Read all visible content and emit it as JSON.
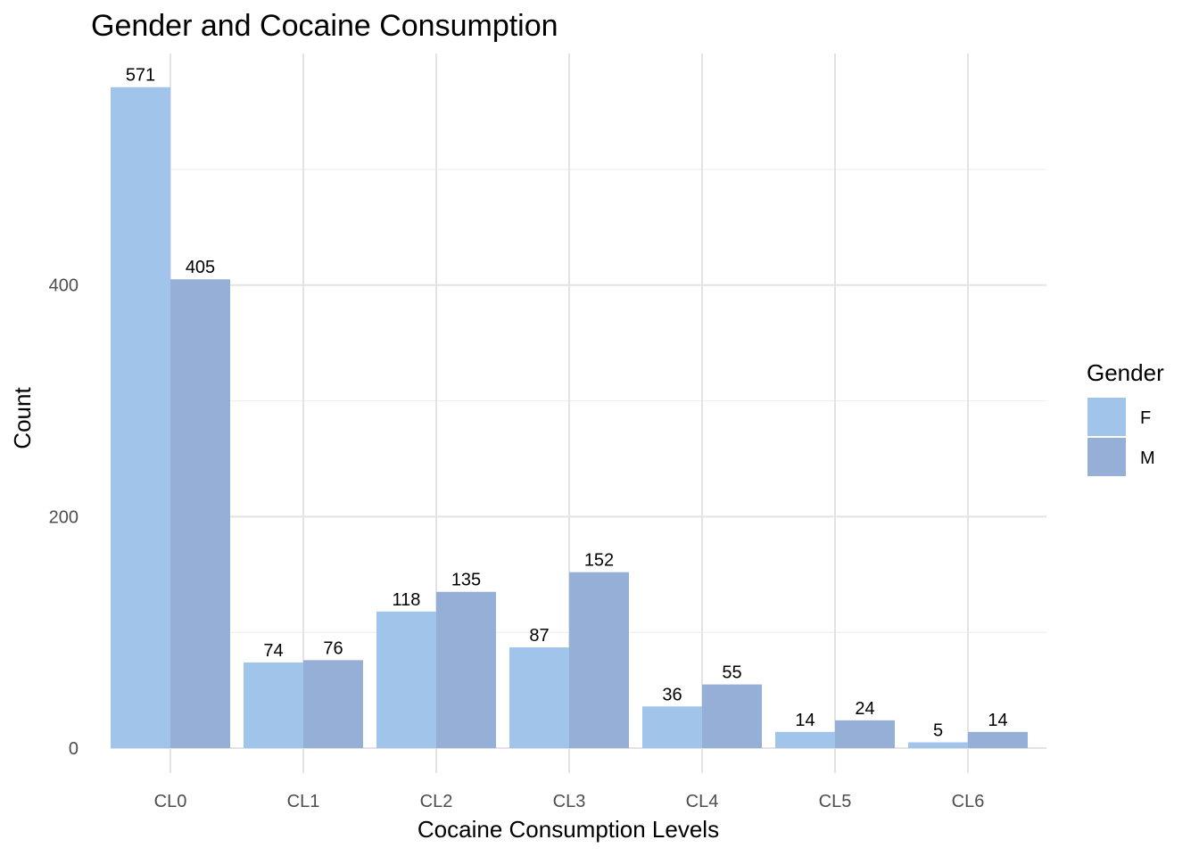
{
  "chart_data": {
    "type": "bar",
    "title": "Gender and Cocaine Consumption",
    "xlabel": "Cocaine Consumption Levels",
    "ylabel": "Count",
    "categories": [
      "CL0",
      "CL1",
      "CL2",
      "CL3",
      "CL4",
      "CL5",
      "CL6"
    ],
    "series": [
      {
        "name": "F",
        "color": "#a0c4ea",
        "values": [
          571,
          74,
          118,
          87,
          36,
          14,
          5
        ]
      },
      {
        "name": "M",
        "color": "#95afd6",
        "values": [
          405,
          76,
          135,
          152,
          55,
          24,
          14
        ]
      }
    ],
    "ylim": [
      0,
      600
    ],
    "yticks": [
      0,
      200,
      400
    ],
    "minor_yticks": [
      100,
      300,
      500
    ],
    "grid": true,
    "legend": {
      "title": "Gender",
      "position": "right"
    }
  }
}
